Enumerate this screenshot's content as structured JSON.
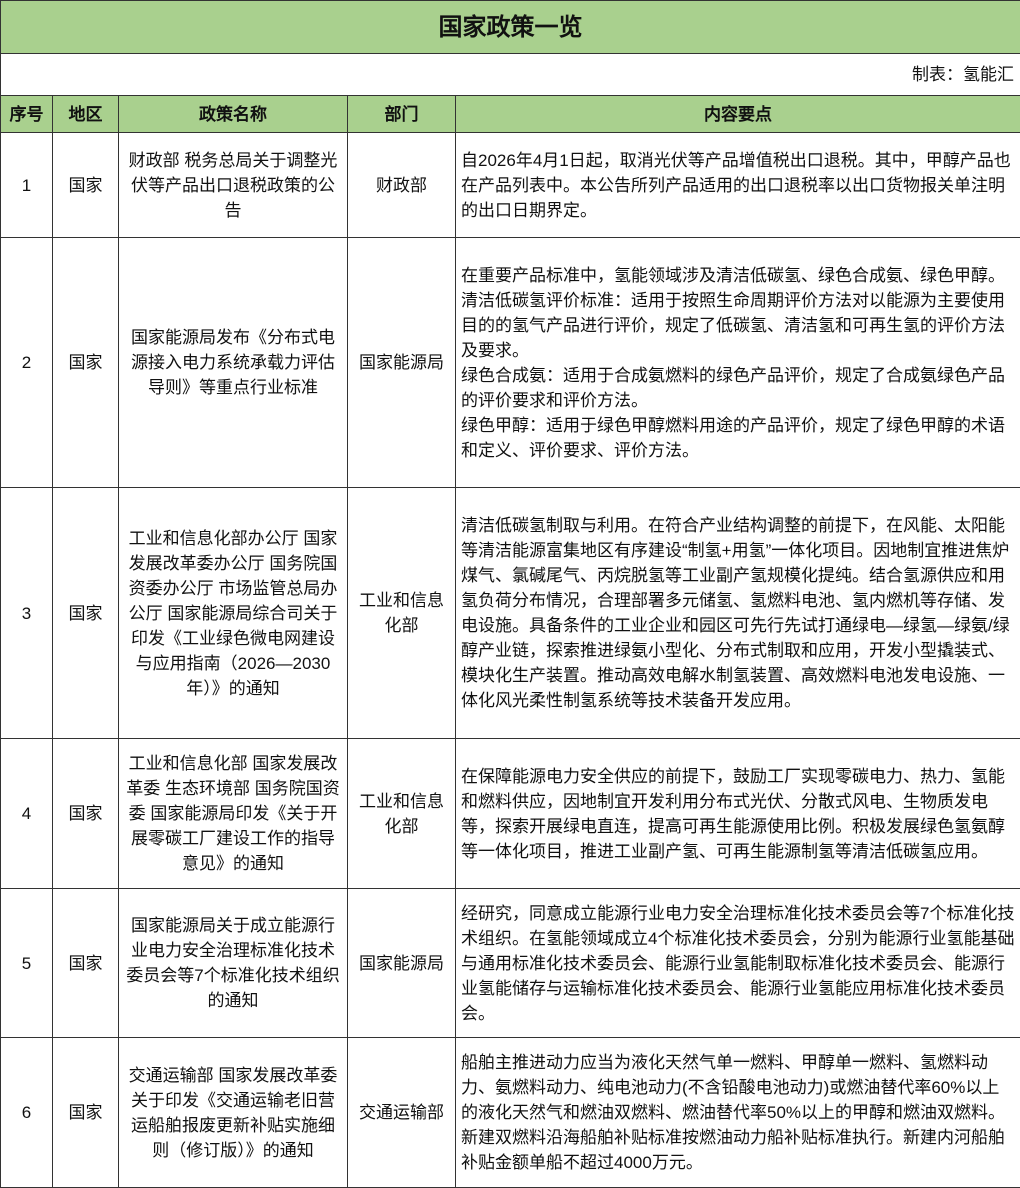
{
  "title": "国家政策一览",
  "source": "制表：氢能汇",
  "table": {
    "headers": [
      "序号",
      "地区",
      "政策名称",
      "部门",
      "内容要点"
    ],
    "rows": [
      [
        1,
        "国家",
        "财政部 税务总局关于调整光伏等产品出口退税政策的公告",
        "财政部",
        [
          "自2026年4月1日起，取消光伏等产品增值税出口退税。其中，甲醇产品也在产品列表中。本公告所列产品适用的出口退税率以出口货物报关单注明的出口日期界定。"
        ]
      ],
      [
        2,
        "国家",
        "国家能源局发布《分布式电源接入电力系统承载力评估导则》等重点行业标准",
        "国家能源局",
        [
          "在重要产品标准中，氢能领域涉及清洁低碳氢、绿色合成氨、绿色甲醇。",
          "清洁低碳氢评价标准：适用于按照生命周期评价方法对以能源为主要使用目的的氢气产品进行评价，规定了低碳氢、清洁氢和可再生氢的评价方法及要求。",
          "绿色合成氨：适用于合成氨燃料的绿色产品评价，规定了合成氨绿色产品的评价要求和评价方法。",
          "绿色甲醇：适用于绿色甲醇燃料用途的产品评价，规定了绿色甲醇的术语和定义、评价要求、评价方法。"
        ]
      ],
      [
        3,
        "国家",
        "工业和信息化部办公厅 国家发展改革委办公厅 国务院国资委办公厅 市场监管总局办公厅 国家能源局综合司关于印发《工业绿色微电网建设与应用指南（2026—2030年）》的通知",
        "工业和信息化部",
        [
          "清洁低碳氢制取与利用。在符合产业结构调整的前提下，在风能、太阳能等清洁能源富集地区有序建设“制氢+用氢”一体化项目。因地制宜推进焦炉煤气、氯碱尾气、丙烷脱氢等工业副产氢规模化提纯。结合氢源供应和用氢负荷分布情况，合理部署多元储氢、氢燃料电池、氢内燃机等存储、发电设施。具备条件的工业企业和园区可先行先试打通绿电—绿氢—绿氨/绿醇产业链，探索推进绿氨小型化、分布式制取和应用，开发小型撬装式、模块化生产装置。推动高效电解水制氢装置、高效燃料电池发电设施、一体化风光柔性制氢系统等技术装备开发应用。"
        ]
      ],
      [
        4,
        "国家",
        "工业和信息化部 国家发展改革委 生态环境部 国务院国资委 国家能源局印发《关于开展零碳工厂建设工作的指导意见》的通知",
        "工业和信息化部",
        [
          "在保障能源电力安全供应的前提下，鼓励工厂实现零碳电力、热力、氢能和燃料供应，因地制宜开发利用分布式光伏、分散式风电、生物质发电等，探索开展绿电直连，提高可再生能源使用比例。积极发展绿色氢氨醇等一体化项目，推进工业副产氢、可再生能源制氢等清洁低碳氢应用。"
        ]
      ],
      [
        5,
        "国家",
        "国家能源局关于成立能源行业电力安全治理标准化技术委员会等7个标准化技术组织的通知",
        "国家能源局",
        [
          "经研究，同意成立能源行业电力安全治理标准化技术委员会等7个标准化技术组织。在氢能领域成立4个标准化技术委员会，分别为能源行业氢能基础与通用标准化技术委员会、能源行业氢能制取标准化技术委员会、能源行业氢能储存与运输标准化技术委员会、能源行业氢能应用标准化技术委员会。"
        ]
      ],
      [
        6,
        "国家",
        "交通运输部 国家发展改革委关于印发《交通运输老旧营运船舶报废更新补贴实施细则（修订版）》的通知",
        "交通运输部",
        [
          "船舶主推进动力应当为液化天然气单一燃料、甲醇单一燃料、氢燃料动力、氨燃料动力、纯电池动力(不含铅酸电池动力)或燃油替代率60%以上的液化天然气和燃油双燃料、燃油替代率50%以上的甲醇和燃油双燃料。新建双燃料沿海船舶补贴标准按燃油动力船补贴标准执行。新建内河船舶补贴金额单船不超过4000万元。"
        ]
      ]
    ]
  }
}
